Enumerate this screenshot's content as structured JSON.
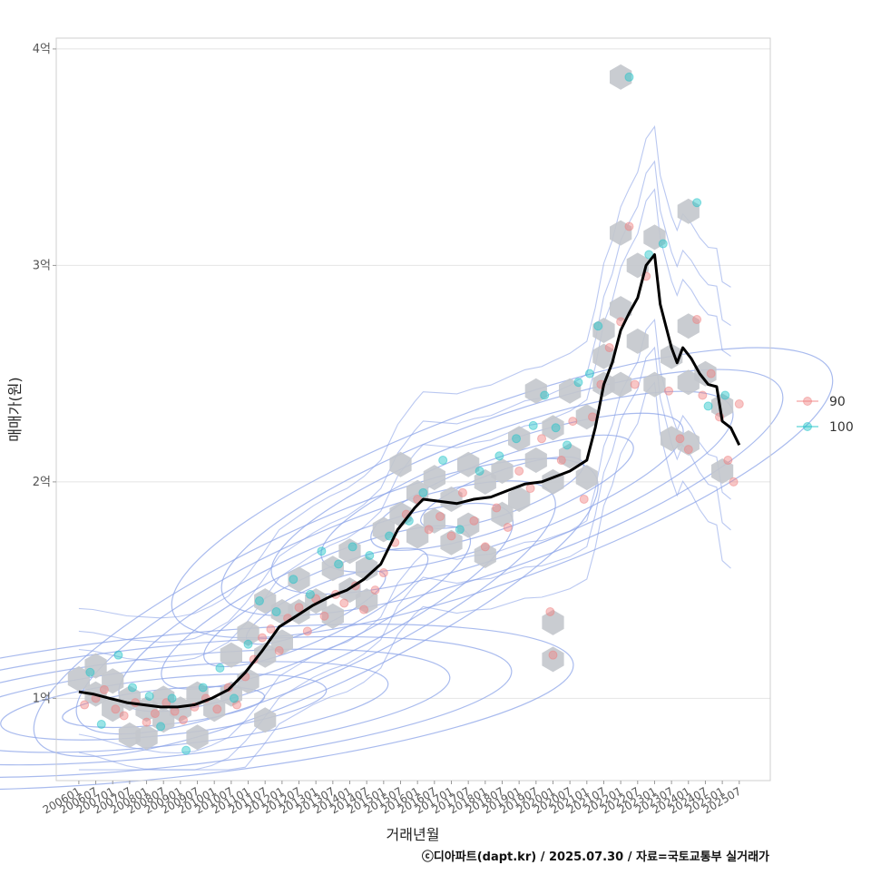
{
  "chart_data": {
    "type": "scatter",
    "xlabel": "거래년월",
    "ylabel": "매매가(원)",
    "caption": "ⓒ디아파트(dapt.kr) / 2025.07.30 / 자료=국토교통부 실거래가",
    "x_ticks": [
      "200601",
      "200607",
      "200701",
      "200707",
      "200801",
      "200807",
      "200901",
      "200907",
      "201001",
      "201007",
      "201101",
      "201107",
      "201201",
      "201207",
      "201301",
      "201307",
      "201401",
      "201407",
      "201501",
      "201507",
      "201601",
      "201607",
      "201701",
      "201707",
      "201801",
      "201807",
      "201901",
      "201907",
      "202001",
      "202007",
      "202101",
      "202107",
      "202201",
      "202207",
      "202301",
      "202307",
      "202401",
      "202407",
      "202501",
      "202507"
    ],
    "y_ticks": [
      {
        "value": 1,
        "label": "1억"
      },
      {
        "value": 2,
        "label": "2억"
      },
      {
        "value": 3,
        "label": "3억"
      },
      {
        "value": 4,
        "label": "4억"
      }
    ],
    "xlim": [
      "2005-05",
      "2026-06"
    ],
    "ylim": [
      0.62,
      4.05
    ],
    "grid": true,
    "legend": {
      "position": "right",
      "entries": [
        {
          "name": "90",
          "color": "#f08080"
        },
        {
          "name": "100",
          "color": "#20c4c8"
        }
      ]
    },
    "colors": {
      "trend": "#000000",
      "contour": "#8ca4e8",
      "hex": "#c3c7cc",
      "panel_border": "#cfcfcf",
      "grid": "#e4e4e4"
    },
    "trend_line": [
      [
        "2006-01",
        1.03
      ],
      [
        "2006-06",
        1.02
      ],
      [
        "2006-12",
        1.0
      ],
      [
        "2007-06",
        0.98
      ],
      [
        "2007-12",
        0.97
      ],
      [
        "2008-06",
        0.96
      ],
      [
        "2008-12",
        0.96
      ],
      [
        "2009-06",
        0.97
      ],
      [
        "2009-12",
        1.0
      ],
      [
        "2010-06",
        1.04
      ],
      [
        "2010-12",
        1.12
      ],
      [
        "2011-06",
        1.22
      ],
      [
        "2011-12",
        1.33
      ],
      [
        "2012-06",
        1.38
      ],
      [
        "2012-12",
        1.43
      ],
      [
        "2013-06",
        1.47
      ],
      [
        "2013-12",
        1.5
      ],
      [
        "2014-06",
        1.55
      ],
      [
        "2014-12",
        1.62
      ],
      [
        "2015-06",
        1.78
      ],
      [
        "2015-12",
        1.88
      ],
      [
        "2016-03",
        1.92
      ],
      [
        "2016-09",
        1.91
      ],
      [
        "2017-03",
        1.9
      ],
      [
        "2017-09",
        1.92
      ],
      [
        "2018-03",
        1.93
      ],
      [
        "2018-09",
        1.96
      ],
      [
        "2019-03",
        1.99
      ],
      [
        "2019-09",
        2.0
      ],
      [
        "2020-01",
        2.02
      ],
      [
        "2020-07",
        2.05
      ],
      [
        "2021-01",
        2.1
      ],
      [
        "2021-04",
        2.25
      ],
      [
        "2021-07",
        2.45
      ],
      [
        "2021-10",
        2.55
      ],
      [
        "2022-01",
        2.7
      ],
      [
        "2022-04",
        2.78
      ],
      [
        "2022-07",
        2.85
      ],
      [
        "2022-10",
        3.0
      ],
      [
        "2023-01",
        3.05
      ],
      [
        "2023-03",
        2.82
      ],
      [
        "2023-05",
        2.72
      ],
      [
        "2023-07",
        2.62
      ],
      [
        "2023-09",
        2.55
      ],
      [
        "2023-11",
        2.62
      ],
      [
        "2024-02",
        2.57
      ],
      [
        "2024-05",
        2.5
      ],
      [
        "2024-08",
        2.45
      ],
      [
        "2024-11",
        2.44
      ],
      [
        "2025-01",
        2.28
      ],
      [
        "2025-04",
        2.25
      ],
      [
        "2025-07",
        2.17
      ]
    ],
    "series": [
      {
        "name": "90",
        "points": [
          [
            "2006-03",
            0.97
          ],
          [
            "2006-07",
            1.0
          ],
          [
            "2006-10",
            1.04
          ],
          [
            "2007-02",
            0.95
          ],
          [
            "2007-05",
            0.92
          ],
          [
            "2007-09",
            0.98
          ],
          [
            "2008-01",
            0.89
          ],
          [
            "2008-04",
            0.93
          ],
          [
            "2008-08",
            0.98
          ],
          [
            "2008-11",
            0.94
          ],
          [
            "2009-02",
            0.9
          ],
          [
            "2009-06",
            0.96
          ],
          [
            "2009-10",
            1.0
          ],
          [
            "2010-02",
            0.95
          ],
          [
            "2010-06",
            1.05
          ],
          [
            "2010-09",
            0.97
          ],
          [
            "2010-12",
            1.1
          ],
          [
            "2011-03",
            1.18
          ],
          [
            "2011-06",
            1.28
          ],
          [
            "2011-09",
            1.32
          ],
          [
            "2011-12",
            1.22
          ],
          [
            "2012-03",
            1.37
          ],
          [
            "2012-07",
            1.42
          ],
          [
            "2012-10",
            1.31
          ],
          [
            "2013-01",
            1.46
          ],
          [
            "2013-04",
            1.38
          ],
          [
            "2013-08",
            1.48
          ],
          [
            "2013-11",
            1.44
          ],
          [
            "2014-03",
            1.52
          ],
          [
            "2014-06",
            1.41
          ],
          [
            "2014-10",
            1.5
          ],
          [
            "2015-01",
            1.58
          ],
          [
            "2015-05",
            1.72
          ],
          [
            "2015-09",
            1.85
          ],
          [
            "2016-01",
            1.92
          ],
          [
            "2016-05",
            1.78
          ],
          [
            "2016-09",
            1.84
          ],
          [
            "2017-01",
            1.75
          ],
          [
            "2017-05",
            1.95
          ],
          [
            "2017-09",
            1.82
          ],
          [
            "2018-01",
            1.7
          ],
          [
            "2018-05",
            1.88
          ],
          [
            "2018-09",
            1.79
          ],
          [
            "2019-01",
            2.05
          ],
          [
            "2019-05",
            1.97
          ],
          [
            "2019-09",
            2.2
          ],
          [
            "2019-12",
            1.4
          ],
          [
            "2020-01",
            1.2
          ],
          [
            "2020-04",
            2.1
          ],
          [
            "2020-08",
            2.28
          ],
          [
            "2020-12",
            1.92
          ],
          [
            "2021-03",
            2.3
          ],
          [
            "2021-06",
            2.45
          ],
          [
            "2021-09",
            2.62
          ],
          [
            "2022-01",
            2.74
          ],
          [
            "2022-04",
            3.18
          ],
          [
            "2022-06",
            2.45
          ],
          [
            "2022-10",
            2.95
          ],
          [
            "2023-06",
            2.42
          ],
          [
            "2023-10",
            2.2
          ],
          [
            "2024-01",
            2.15
          ],
          [
            "2024-04",
            2.75
          ],
          [
            "2024-06",
            2.4
          ],
          [
            "2024-09",
            2.5
          ],
          [
            "2024-12",
            2.3
          ],
          [
            "2025-03",
            2.1
          ],
          [
            "2025-05",
            2.0
          ],
          [
            "2025-07",
            2.36
          ]
        ]
      },
      {
        "name": "100",
        "points": [
          [
            "2006-05",
            1.12
          ],
          [
            "2006-09",
            0.88
          ],
          [
            "2007-03",
            1.2
          ],
          [
            "2007-08",
            1.05
          ],
          [
            "2008-02",
            1.01
          ],
          [
            "2008-06",
            0.87
          ],
          [
            "2008-10",
            1.0
          ],
          [
            "2009-03",
            0.76
          ],
          [
            "2009-09",
            1.05
          ],
          [
            "2010-03",
            1.14
          ],
          [
            "2010-08",
            1.0
          ],
          [
            "2011-01",
            1.25
          ],
          [
            "2011-05",
            1.45
          ],
          [
            "2011-11",
            1.4
          ],
          [
            "2012-05",
            1.55
          ],
          [
            "2012-11",
            1.48
          ],
          [
            "2013-03",
            1.68
          ],
          [
            "2013-09",
            1.62
          ],
          [
            "2014-02",
            1.7
          ],
          [
            "2014-08",
            1.66
          ],
          [
            "2015-03",
            1.75
          ],
          [
            "2015-10",
            1.82
          ],
          [
            "2016-03",
            1.95
          ],
          [
            "2016-10",
            2.1
          ],
          [
            "2017-04",
            1.78
          ],
          [
            "2017-11",
            2.05
          ],
          [
            "2018-06",
            2.12
          ],
          [
            "2018-12",
            2.2
          ],
          [
            "2019-06",
            2.26
          ],
          [
            "2019-10",
            2.4
          ],
          [
            "2020-02",
            2.25
          ],
          [
            "2020-06",
            2.17
          ],
          [
            "2020-10",
            2.46
          ],
          [
            "2021-02",
            2.5
          ],
          [
            "2021-05",
            2.72
          ],
          [
            "2022-04",
            3.87
          ],
          [
            "2022-11",
            3.05
          ],
          [
            "2023-04",
            3.1
          ],
          [
            "2024-04",
            3.29
          ],
          [
            "2024-08",
            2.35
          ],
          [
            "2025-02",
            2.4
          ]
        ]
      }
    ],
    "hex_bins": [
      [
        "2006-01",
        1.09
      ],
      [
        "2006-07",
        1.15
      ],
      [
        "2006-07",
        1.02
      ],
      [
        "2007-01",
        1.08
      ],
      [
        "2007-01",
        0.95
      ],
      [
        "2007-07",
        1.0
      ],
      [
        "2007-07",
        0.83
      ],
      [
        "2008-01",
        0.95
      ],
      [
        "2008-01",
        0.82
      ],
      [
        "2008-07",
        1.0
      ],
      [
        "2008-07",
        0.9
      ],
      [
        "2009-01",
        0.95
      ],
      [
        "2009-07",
        1.02
      ],
      [
        "2009-07",
        0.82
      ],
      [
        "2010-01",
        0.95
      ],
      [
        "2010-07",
        1.02
      ],
      [
        "2010-07",
        1.2
      ],
      [
        "2011-01",
        1.08
      ],
      [
        "2011-01",
        1.3
      ],
      [
        "2011-07",
        1.45
      ],
      [
        "2011-07",
        1.2
      ],
      [
        "2011-07",
        0.9
      ],
      [
        "2012-01",
        1.4
      ],
      [
        "2012-01",
        1.26
      ],
      [
        "2012-07",
        1.55
      ],
      [
        "2012-07",
        1.4
      ],
      [
        "2013-01",
        1.45
      ],
      [
        "2013-07",
        1.6
      ],
      [
        "2013-07",
        1.38
      ],
      [
        "2014-01",
        1.68
      ],
      [
        "2014-01",
        1.5
      ],
      [
        "2014-07",
        1.6
      ],
      [
        "2014-07",
        1.45
      ],
      [
        "2015-01",
        1.78
      ],
      [
        "2015-07",
        1.85
      ],
      [
        "2015-07",
        2.08
      ],
      [
        "2016-01",
        1.95
      ],
      [
        "2016-01",
        1.75
      ],
      [
        "2016-07",
        2.02
      ],
      [
        "2016-07",
        1.82
      ],
      [
        "2017-01",
        1.92
      ],
      [
        "2017-01",
        1.72
      ],
      [
        "2017-07",
        2.08
      ],
      [
        "2017-07",
        1.8
      ],
      [
        "2018-01",
        2.0
      ],
      [
        "2018-01",
        1.66
      ],
      [
        "2018-07",
        2.05
      ],
      [
        "2018-07",
        1.85
      ],
      [
        "2019-01",
        2.2
      ],
      [
        "2019-01",
        1.92
      ],
      [
        "2019-07",
        2.1
      ],
      [
        "2019-07",
        2.42
      ],
      [
        "2020-01",
        2.25
      ],
      [
        "2020-01",
        2.0
      ],
      [
        "2020-01",
        1.35
      ],
      [
        "2020-01",
        1.18
      ],
      [
        "2020-07",
        2.12
      ],
      [
        "2020-07",
        2.42
      ],
      [
        "2021-01",
        2.3
      ],
      [
        "2021-01",
        2.02
      ],
      [
        "2021-07",
        2.58
      ],
      [
        "2021-07",
        2.7
      ],
      [
        "2021-07",
        2.45
      ],
      [
        "2022-01",
        2.8
      ],
      [
        "2022-01",
        3.15
      ],
      [
        "2022-01",
        2.45
      ],
      [
        "2022-01",
        3.87
      ],
      [
        "2022-07",
        3.0
      ],
      [
        "2022-07",
        2.65
      ],
      [
        "2023-01",
        3.13
      ],
      [
        "2023-01",
        2.45
      ],
      [
        "2023-07",
        2.58
      ],
      [
        "2023-07",
        2.2
      ],
      [
        "2024-01",
        2.46
      ],
      [
        "2024-01",
        3.25
      ],
      [
        "2024-01",
        2.72
      ],
      [
        "2024-01",
        2.18
      ],
      [
        "2024-07",
        2.5
      ],
      [
        "2025-01",
        2.05
      ],
      [
        "2025-01",
        2.35
      ]
    ]
  }
}
